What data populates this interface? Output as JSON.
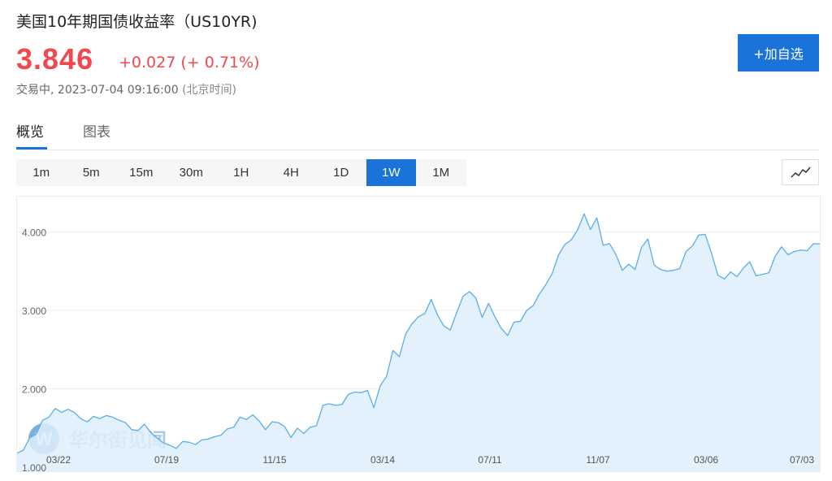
{
  "header": {
    "title": "美国10年期国债收益率（US10YR)",
    "price": "3.846",
    "change": "+0.027 (+ 0.71%)",
    "status_label": "交易中,",
    "timestamp": "2023-07-04 09:16:00",
    "timezone": "(北京时间)",
    "add_button_label": "+加自选"
  },
  "tabs": [
    {
      "label": "概览",
      "active": true
    },
    {
      "label": "图表",
      "active": false
    }
  ],
  "periods": [
    {
      "label": "1m",
      "active": false
    },
    {
      "label": "5m",
      "active": false
    },
    {
      "label": "15m",
      "active": false
    },
    {
      "label": "30m",
      "active": false
    },
    {
      "label": "1H",
      "active": false
    },
    {
      "label": "4H",
      "active": false
    },
    {
      "label": "1D",
      "active": false
    },
    {
      "label": "1W",
      "active": true
    },
    {
      "label": "1M",
      "active": false
    }
  ],
  "chart_toggle_icon": "line-chart-icon",
  "watermark": {
    "text": "华尔街见闻"
  },
  "colors": {
    "accent": "#1a73d9",
    "up": "#f2474d",
    "line": "#5aaee8",
    "fill": "#deeefb"
  },
  "chart_data": {
    "type": "area",
    "title": "",
    "xlabel": "",
    "ylabel": "",
    "ylim": [
      0.95,
      4.45
    ],
    "yticks": [
      1.0,
      2.0,
      3.0,
      4.0
    ],
    "ytick_labels": [
      "1.000",
      "2.000",
      "3.000",
      "4.000"
    ],
    "grid": true,
    "series": [
      {
        "values": [
          1.18,
          1.22,
          1.38,
          1.42,
          1.6,
          1.64,
          1.75,
          1.7,
          1.74,
          1.7,
          1.62,
          1.58,
          1.65,
          1.62,
          1.66,
          1.64,
          1.6,
          1.57,
          1.48,
          1.47,
          1.55,
          1.44,
          1.37,
          1.31,
          1.28,
          1.24,
          1.33,
          1.32,
          1.29,
          1.35,
          1.36,
          1.39,
          1.41,
          1.49,
          1.51,
          1.64,
          1.61,
          1.67,
          1.59,
          1.48,
          1.58,
          1.57,
          1.52,
          1.38,
          1.5,
          1.43,
          1.51,
          1.53,
          1.79,
          1.81,
          1.79,
          1.8,
          1.93,
          1.96,
          1.95,
          1.98,
          1.76,
          2.04,
          2.16,
          2.49,
          2.41,
          2.7,
          2.83,
          2.92,
          2.96,
          3.14,
          2.94,
          2.8,
          2.75,
          2.97,
          3.18,
          3.24,
          3.16,
          2.91,
          3.09,
          2.92,
          2.77,
          2.68,
          2.85,
          2.86,
          3.0,
          3.06,
          3.21,
          3.33,
          3.47,
          3.71,
          3.84,
          3.9,
          4.03,
          4.23,
          4.03,
          4.18,
          3.83,
          3.85,
          3.71,
          3.51,
          3.59,
          3.52,
          3.8,
          3.91,
          3.58,
          3.52,
          3.5,
          3.51,
          3.53,
          3.75,
          3.82,
          3.96,
          3.97,
          3.73,
          3.45,
          3.4,
          3.49,
          3.43,
          3.54,
          3.62,
          3.44,
          3.46,
          3.48,
          3.69,
          3.81,
          3.71,
          3.75,
          3.77,
          3.76,
          3.85,
          3.846
        ]
      }
    ],
    "x_tick_labels": [
      "03/22",
      "07/19",
      "11/15",
      "03/14",
      "07/11",
      "11/07",
      "03/06",
      "07/03"
    ]
  }
}
